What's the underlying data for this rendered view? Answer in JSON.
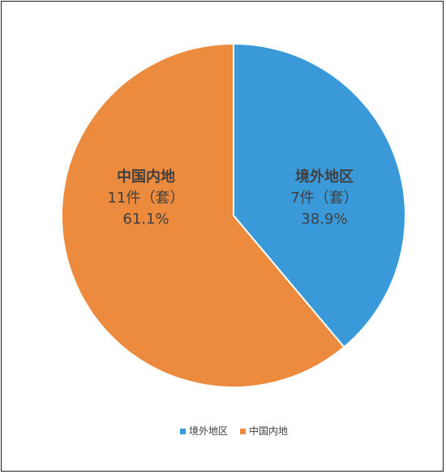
{
  "chart_data": {
    "type": "pie",
    "slices": [
      {
        "name": "境外地区",
        "count_label": "7件（套）",
        "percent_label": "38.9%",
        "value": 7,
        "color": "#3a9ad9"
      },
      {
        "name": "中国内地",
        "count_label": "11件（套）",
        "percent_label": "61.1%",
        "value": 11,
        "color": "#ec8a3d"
      }
    ],
    "legend": {
      "position": "bottom",
      "items": [
        "境外地区",
        "中国内地"
      ]
    }
  }
}
